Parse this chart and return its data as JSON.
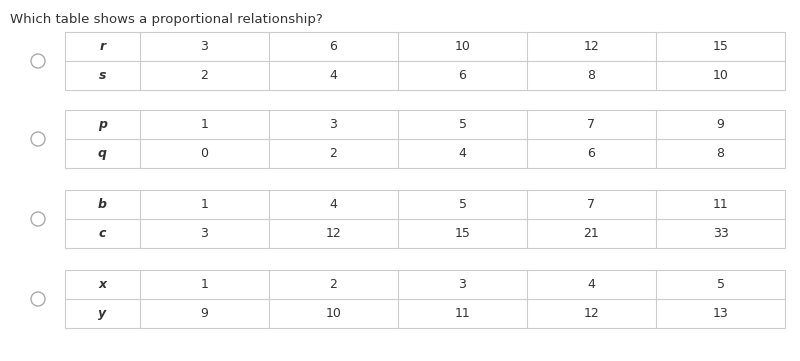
{
  "title": "Which table shows a proportional relationship?",
  "title_fontsize": 9.5,
  "background_color": "#ffffff",
  "table_border_color": "#cccccc",
  "text_color": "#333333",
  "tables": [
    {
      "row1_label": "r",
      "row2_label": "s",
      "row1_values": [
        "3",
        "6",
        "10",
        "12",
        "15"
      ],
      "row2_values": [
        "2",
        "4",
        "6",
        "8",
        "10"
      ]
    },
    {
      "row1_label": "p",
      "row2_label": "q",
      "row1_values": [
        "1",
        "3",
        "5",
        "7",
        "9"
      ],
      "row2_values": [
        "0",
        "2",
        "4",
        "6",
        "8"
      ]
    },
    {
      "row1_label": "b",
      "row2_label": "c",
      "row1_values": [
        "1",
        "4",
        "5",
        "7",
        "11"
      ],
      "row2_values": [
        "3",
        "12",
        "15",
        "21",
        "33"
      ]
    },
    {
      "row1_label": "x",
      "row2_label": "y",
      "row1_values": [
        "1",
        "2",
        "3",
        "4",
        "5"
      ],
      "row2_values": [
        "9",
        "10",
        "11",
        "12",
        "13"
      ]
    }
  ]
}
